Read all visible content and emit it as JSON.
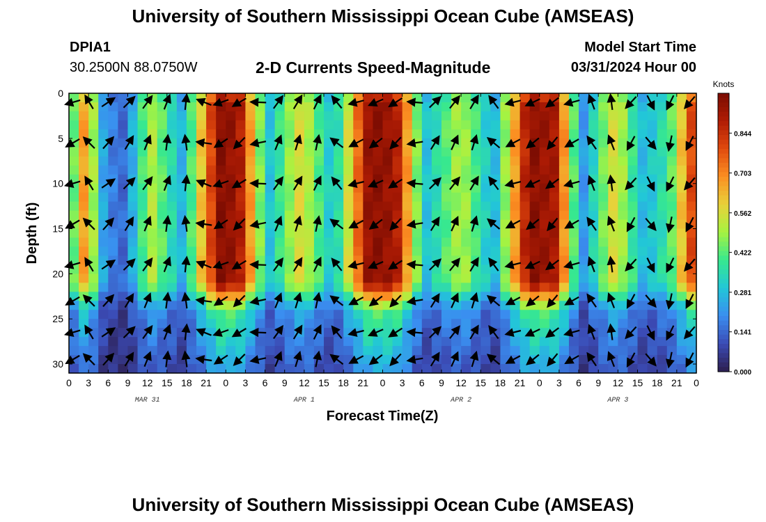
{
  "header": {
    "top_title": "University of Southern Mississippi Ocean Cube (AMSEAS)",
    "station_id": "DPIA1",
    "station_coords": "30.2500N  88.0750W",
    "plot_title": "2-D Currents Speed-Magnitude",
    "model_start_label": "Model Start Time",
    "model_start_value": "03/31/2024 Hour 00",
    "bottom_title": "University of Southern Mississippi Ocean Cube (AMSEAS)"
  },
  "chart_data": {
    "type": "heatmap",
    "title": "2-D Currents Speed-Magnitude",
    "xlabel": "Forecast Time(Z)",
    "ylabel": "Depth (ft)",
    "x_range_hours": [
      0,
      96
    ],
    "y_range_ft": [
      0,
      31
    ],
    "x_tick_labels": [
      "0",
      "3",
      "6",
      "9",
      "12",
      "15",
      "18",
      "21",
      "0",
      "3",
      "6",
      "9",
      "12",
      "15",
      "18",
      "21",
      "0",
      "3",
      "6",
      "9",
      "12",
      "15",
      "18",
      "21",
      "0",
      "3",
      "6",
      "9",
      "12",
      "15",
      "18",
      "21",
      "0"
    ],
    "x_tick_hours": [
      0,
      3,
      6,
      9,
      12,
      15,
      18,
      21,
      24,
      27,
      30,
      33,
      36,
      39,
      42,
      45,
      48,
      51,
      54,
      57,
      60,
      63,
      66,
      69,
      72,
      75,
      78,
      81,
      84,
      87,
      90,
      93,
      96
    ],
    "y_tick_labels": [
      "0",
      "5",
      "10",
      "15",
      "20",
      "25",
      "30"
    ],
    "y_ticks_ft": [
      0,
      5,
      10,
      15,
      20,
      25,
      30
    ],
    "date_labels": [
      {
        "label": "MAR 31",
        "hour": 12
      },
      {
        "label": "APR 1",
        "hour": 36
      },
      {
        "label": "APR 2",
        "hour": 60
      },
      {
        "label": "APR 3",
        "hour": 84
      }
    ],
    "colorbar": {
      "unit": "Knots",
      "min": 0.0,
      "max": 0.985,
      "tick_labels": [
        "0.844",
        "0.703",
        "0.562",
        "0.422",
        "0.281",
        "0.141",
        "0.000"
      ],
      "tick_values": [
        0.844,
        0.703,
        0.562,
        0.422,
        0.281,
        0.141,
        0.0
      ],
      "colors": [
        "#2d1e4e",
        "#3b4bb5",
        "#3a8ef0",
        "#22c6d8",
        "#37e88f",
        "#a6f341",
        "#e8d13a",
        "#fb8f22",
        "#e14b0e",
        "#b01c04",
        "#7a0c02"
      ]
    },
    "speed_peaks": [
      {
        "hour": 0.0,
        "speed": 0.33
      },
      {
        "hour": 2.5,
        "speed": 0.7
      },
      {
        "hour": 5.5,
        "speed": 0.2
      },
      {
        "hour": 8.5,
        "speed": 0.14
      },
      {
        "hour": 12.5,
        "speed": 0.52
      },
      {
        "hour": 17.5,
        "speed": 0.25
      },
      {
        "hour": 23.0,
        "speed": 0.96
      },
      {
        "hour": 26.0,
        "speed": 0.92
      },
      {
        "hour": 30.5,
        "speed": 0.28
      },
      {
        "hour": 35.5,
        "speed": 0.58
      },
      {
        "hour": 40.5,
        "speed": 0.27
      },
      {
        "hour": 46.0,
        "speed": 0.96
      },
      {
        "hour": 50.0,
        "speed": 0.92
      },
      {
        "hour": 54.5,
        "speed": 0.28
      },
      {
        "hour": 60.0,
        "speed": 0.52
      },
      {
        "hour": 65.0,
        "speed": 0.25
      },
      {
        "hour": 70.5,
        "speed": 0.96
      },
      {
        "hour": 74.5,
        "speed": 0.9
      },
      {
        "hour": 78.5,
        "speed": 0.2
      },
      {
        "hour": 83.5,
        "speed": 0.58
      },
      {
        "hour": 88.0,
        "speed": 0.26
      },
      {
        "hour": 92.0,
        "speed": 0.4
      },
      {
        "hour": 96.0,
        "speed": 0.88
      }
    ],
    "vector_hours": [
      0.6,
      3.1,
      6,
      9.2,
      12,
      15,
      17.9,
      20.7,
      23.3,
      26.1,
      29,
      32,
      35,
      38,
      41,
      44,
      47,
      50,
      53,
      56,
      59,
      62,
      65,
      68,
      71,
      74,
      77,
      80,
      83,
      86,
      89,
      92,
      95
    ],
    "vector_depths_ft": [
      1,
      5.5,
      10,
      14.5,
      19,
      23,
      26.5,
      29.5
    ],
    "vector_direction_phases": [
      {
        "hour": 0.0,
        "angle_deg": 220
      },
      {
        "hour": 6.0,
        "angle_deg": 40
      },
      {
        "hour": 12.0,
        "angle_deg": 60
      },
      {
        "hour": 18.0,
        "angle_deg": 90
      },
      {
        "hour": 22.0,
        "angle_deg": 200
      },
      {
        "hour": 28.0,
        "angle_deg": 225
      },
      {
        "hour": 32.0,
        "angle_deg": 60
      },
      {
        "hour": 38.0,
        "angle_deg": 70
      },
      {
        "hour": 44.0,
        "angle_deg": 200
      },
      {
        "hour": 52.0,
        "angle_deg": 225
      },
      {
        "hour": 56.0,
        "angle_deg": 50
      },
      {
        "hour": 62.0,
        "angle_deg": 65
      },
      {
        "hour": 68.0,
        "angle_deg": 200
      },
      {
        "hour": 76.0,
        "angle_deg": 230
      },
      {
        "hour": 82.0,
        "angle_deg": 60
      },
      {
        "hour": 88.0,
        "angle_deg": 320
      },
      {
        "hour": 92.0,
        "angle_deg": 250
      },
      {
        "hour": 96.0,
        "angle_deg": 230
      }
    ]
  }
}
